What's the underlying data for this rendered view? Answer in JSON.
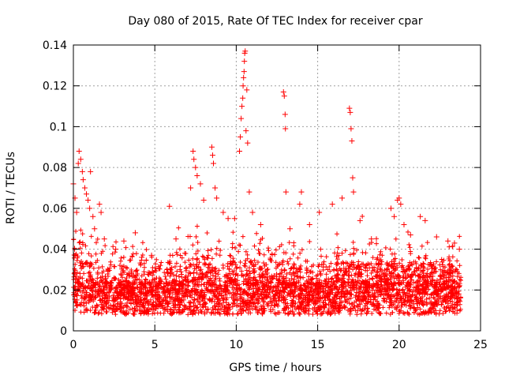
{
  "chart_data": {
    "type": "scatter",
    "title": "Day 080 of 2015, Rate Of TEC Index for receiver cpar",
    "xlabel": "GPS time / hours",
    "ylabel": "ROTI / TECUs",
    "xlim": [
      0,
      25
    ],
    "ylim": [
      0,
      0.14
    ],
    "x_ticks": [
      0,
      5,
      10,
      15,
      20,
      25
    ],
    "y_ticks": [
      0,
      0.02,
      0.04,
      0.06,
      0.08,
      0.1,
      0.12,
      0.14
    ],
    "x_tick_labels": [
      "0",
      "5",
      "10",
      "15",
      "20",
      "25"
    ],
    "y_tick_labels": [
      "0",
      "0.02",
      "0.04",
      "0.06",
      "0.08",
      "0.1",
      "0.12",
      "0.14"
    ],
    "grid": true,
    "marker": "+",
    "marker_color": "#ff0000",
    "series": [
      {
        "name": "",
        "points": [
          [
            0.0,
            0.072
          ],
          [
            0.1,
            0.065
          ],
          [
            0.2,
            0.058
          ],
          [
            0.3,
            0.082
          ],
          [
            0.35,
            0.088
          ],
          [
            0.45,
            0.084
          ],
          [
            0.55,
            0.078
          ],
          [
            0.6,
            0.074
          ],
          [
            0.7,
            0.07
          ],
          [
            0.8,
            0.067
          ],
          [
            0.9,
            0.064
          ],
          [
            1.0,
            0.06
          ],
          [
            1.05,
            0.078
          ],
          [
            1.2,
            0.056
          ],
          [
            1.3,
            0.05
          ],
          [
            1.6,
            0.062
          ],
          [
            1.7,
            0.058
          ],
          [
            1.9,
            0.045
          ],
          [
            2.6,
            0.04
          ],
          [
            3.1,
            0.044
          ],
          [
            3.8,
            0.048
          ],
          [
            4.2,
            0.036
          ],
          [
            4.8,
            0.037
          ],
          [
            5.9,
            0.061
          ],
          [
            6.3,
            0.045
          ],
          [
            7.2,
            0.07
          ],
          [
            7.35,
            0.088
          ],
          [
            7.4,
            0.084
          ],
          [
            7.5,
            0.08
          ],
          [
            7.6,
            0.076
          ],
          [
            7.8,
            0.072
          ],
          [
            8.0,
            0.064
          ],
          [
            8.5,
            0.09
          ],
          [
            8.55,
            0.086
          ],
          [
            8.6,
            0.082
          ],
          [
            8.7,
            0.07
          ],
          [
            8.8,
            0.065
          ],
          [
            9.2,
            0.058
          ],
          [
            9.5,
            0.055
          ],
          [
            9.9,
            0.055
          ],
          [
            10.2,
            0.088
          ],
          [
            10.25,
            0.095
          ],
          [
            10.3,
            0.104
          ],
          [
            10.35,
            0.11
          ],
          [
            10.4,
            0.114
          ],
          [
            10.42,
            0.12
          ],
          [
            10.45,
            0.124
          ],
          [
            10.48,
            0.127
          ],
          [
            10.5,
            0.132
          ],
          [
            10.52,
            0.136
          ],
          [
            10.55,
            0.137
          ],
          [
            10.6,
            0.098
          ],
          [
            10.65,
            0.118
          ],
          [
            10.7,
            0.092
          ],
          [
            10.8,
            0.068
          ],
          [
            11.0,
            0.058
          ],
          [
            11.5,
            0.052
          ],
          [
            12.9,
            0.117
          ],
          [
            12.95,
            0.115
          ],
          [
            13.0,
            0.106
          ],
          [
            13.02,
            0.099
          ],
          [
            13.05,
            0.068
          ],
          [
            13.3,
            0.05
          ],
          [
            13.9,
            0.062
          ],
          [
            14.0,
            0.068
          ],
          [
            14.5,
            0.052
          ],
          [
            15.1,
            0.058
          ],
          [
            15.9,
            0.062
          ],
          [
            16.5,
            0.065
          ],
          [
            16.95,
            0.109
          ],
          [
            17.0,
            0.107
          ],
          [
            17.05,
            0.099
          ],
          [
            17.1,
            0.093
          ],
          [
            17.15,
            0.075
          ],
          [
            17.2,
            0.068
          ],
          [
            17.6,
            0.054
          ],
          [
            18.3,
            0.045
          ],
          [
            19.5,
            0.06
          ],
          [
            19.7,
            0.056
          ],
          [
            19.9,
            0.064
          ],
          [
            20.0,
            0.065
          ],
          [
            20.1,
            0.062
          ],
          [
            20.3,
            0.052
          ],
          [
            20.7,
            0.047
          ],
          [
            21.3,
            0.056
          ],
          [
            21.6,
            0.054
          ],
          [
            22.3,
            0.046
          ],
          [
            23.0,
            0.044
          ],
          [
            23.4,
            0.043
          ],
          [
            23.7,
            0.04
          ]
        ]
      }
    ]
  }
}
